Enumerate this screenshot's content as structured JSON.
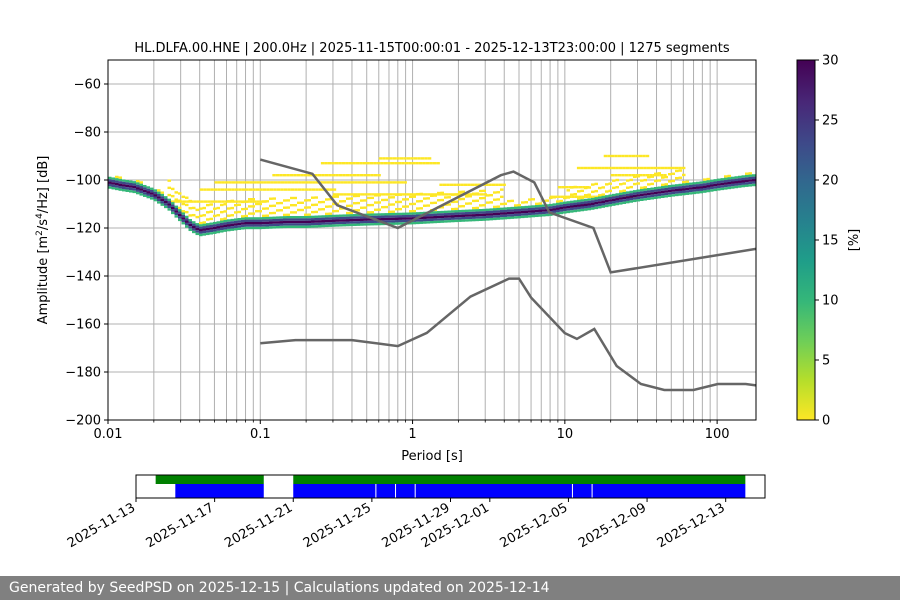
{
  "chart_data": {
    "type": "heatmap",
    "title": "HL.DLFA.00.HNE | 200.0Hz | 2025-11-15T00:00:01 - 2025-12-13T23:00:00 | 1275 segments",
    "xlabel": "Period [s]",
    "ylabel_parts": [
      "Amplitude [m",
      "2",
      "/s",
      "4",
      "/Hz] [dB]"
    ],
    "x_scale": "log",
    "xlim": [
      0.01,
      180
    ],
    "ylim": [
      -200,
      -50
    ],
    "x_ticks": [
      {
        "value": 0.01,
        "label": "0.01"
      },
      {
        "value": 0.1,
        "label": "0.1"
      },
      {
        "value": 1,
        "label": "1"
      },
      {
        "value": 10,
        "label": "10"
      },
      {
        "value": 100,
        "label": "100"
      }
    ],
    "y_ticks": [
      {
        "value": -60,
        "label": "−60"
      },
      {
        "value": -80,
        "label": "−80"
      },
      {
        "value": -100,
        "label": "−100"
      },
      {
        "value": -120,
        "label": "−120"
      },
      {
        "value": -140,
        "label": "−140"
      },
      {
        "value": -160,
        "label": "−160"
      },
      {
        "value": -180,
        "label": "−180"
      },
      {
        "value": -200,
        "label": "−200"
      }
    ],
    "grid": "x-log-minor",
    "colorbar": {
      "label": "[%]",
      "range": [
        0,
        30
      ],
      "ticks": [
        {
          "value": 0,
          "label": "0"
        },
        {
          "value": 5,
          "label": "5"
        },
        {
          "value": 10,
          "label": "10"
        },
        {
          "value": 15,
          "label": "15"
        },
        {
          "value": 20,
          "label": "20"
        },
        {
          "value": 25,
          "label": "25"
        },
        {
          "value": 30,
          "label": "30"
        }
      ],
      "colors": [
        "#fde725",
        "#b5de2b",
        "#6ece58",
        "#35b779",
        "#1f9e89",
        "#26828e",
        "#31688e",
        "#3e4989",
        "#482878",
        "#440154"
      ]
    },
    "mode_curve": {
      "x": [
        0.01,
        0.012,
        0.015,
        0.02,
        0.025,
        0.03,
        0.035,
        0.04,
        0.05,
        0.06,
        0.08,
        0.1,
        0.15,
        0.2,
        0.3,
        0.5,
        1,
        2,
        3,
        5,
        8,
        10,
        15,
        20,
        30,
        50,
        80,
        100,
        150,
        180
      ],
      "y": [
        -101,
        -102,
        -103,
        -106,
        -110,
        -115,
        -119,
        -121,
        -120,
        -119,
        -118,
        -118,
        -117.5,
        -117.5,
        -117,
        -116.5,
        -116,
        -115,
        -114.5,
        -113.5,
        -112.5,
        -111.5,
        -110,
        -108.5,
        -106.5,
        -104.5,
        -103,
        -102,
        -100.5,
        -100
      ]
    },
    "yellow_spread_rows": [
      {
        "x0": 0.025,
        "x1": 0.11,
        "y": -109
      },
      {
        "x0": 0.04,
        "x1": 0.3,
        "y": -104
      },
      {
        "x0": 0.12,
        "x1": 0.6,
        "y": -98
      },
      {
        "x0": 0.25,
        "x1": 1.5,
        "y": -93
      },
      {
        "x0": 0.6,
        "x1": 1.3,
        "y": -91
      },
      {
        "x0": 0.05,
        "x1": 0.9,
        "y": -101
      },
      {
        "x0": 0.3,
        "x1": 3,
        "y": -106
      },
      {
        "x0": 1.5,
        "x1": 4,
        "y": -102
      },
      {
        "x0": 12,
        "x1": 60,
        "y": -95
      },
      {
        "x0": 18,
        "x1": 35,
        "y": -90
      },
      {
        "x0": 20,
        "x1": 45,
        "y": -98
      },
      {
        "x0": 9,
        "x1": 14,
        "y": -103
      },
      {
        "x0": 8,
        "x1": 30,
        "y": -107
      }
    ],
    "noise_models": [
      {
        "x": [
          0.1,
          0.17,
          0.4,
          0.8,
          1.24,
          2.4,
          4.3,
          5,
          6,
          10,
          12,
          15.6,
          21.9,
          31.6,
          45,
          70,
          101,
          154,
          180
        ],
        "y": [
          -168,
          -166.7,
          -166.7,
          -169.2,
          -163.7,
          -148.6,
          -141.1,
          -141.1,
          -149,
          -163.8,
          -166.2,
          -162.1,
          -177.5,
          -185,
          -187.5,
          -187.5,
          -185,
          -185,
          -185.6
        ]
      },
      {
        "x": [
          0.1,
          0.22,
          0.32,
          0.8,
          3.8,
          4.6,
          6.3,
          7.9,
          15.4,
          20,
          180
        ],
        "y": [
          -91.5,
          -97.4,
          -110.5,
          -120,
          -98,
          -96.5,
          -101,
          -113.5,
          -120,
          -138.5,
          -128.7
        ]
      }
    ],
    "availability": {
      "date_ticks": [
        "2025-11-13",
        "2025-11-17",
        "2025-11-21",
        "2025-11-25",
        "2025-11-29",
        "2025-12-01",
        "2025-12-05",
        "2025-12-09",
        "2025-12-13"
      ],
      "xlim": [
        "2025-11-13",
        "2025-12-15"
      ],
      "green_spans": [
        [
          "2025-11-14",
          "2025-11-19T12:00"
        ],
        [
          "2025-11-21",
          "2025-12-14"
        ]
      ],
      "blue_spans": [
        [
          "2025-11-15",
          "2025-11-19T12:00"
        ],
        [
          "2025-11-21",
          "2025-12-14"
        ]
      ],
      "gap_dates": [
        "2025-11-25",
        "2025-11-26",
        "2025-11-27",
        "2025-12-05",
        "2025-12-06"
      ]
    }
  },
  "footer": {
    "text": "Generated by SeedPSD on 2025-12-15 | Calculations updated on 2025-12-14"
  }
}
